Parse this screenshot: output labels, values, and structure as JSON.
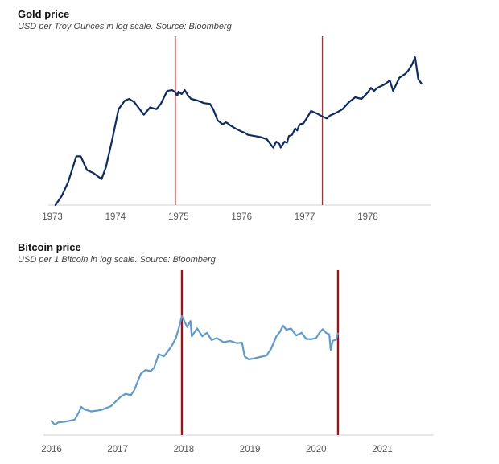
{
  "chart_data": [
    {
      "type": "line",
      "title": "Gold price",
      "subtitle": "USD per Troy Ounces in log scale. Source: Bloomberg",
      "xlabel": "",
      "ylabel": "",
      "y_scale": "log",
      "xlim": [
        1973.0,
        1978.85
      ],
      "ylim": [
        65,
        240
      ],
      "x_ticks": [
        "1973",
        "1974",
        "1975",
        "1976",
        "1977",
        "1978"
      ],
      "line_color": "#0b2a6b",
      "markers": [
        {
          "x": 1974.95,
          "color": "#d42020"
        },
        {
          "x": 1977.28,
          "color": "#d42020"
        }
      ],
      "series": [
        {
          "name": "Gold",
          "x": [
            1973.05,
            1973.15,
            1973.25,
            1973.38,
            1973.45,
            1973.55,
            1973.65,
            1973.78,
            1973.85,
            1973.95,
            1974.05,
            1974.15,
            1974.22,
            1974.3,
            1974.45,
            1974.55,
            1974.65,
            1974.72,
            1974.82,
            1974.9,
            1974.95,
            1974.98,
            1975.0,
            1975.05,
            1975.1,
            1975.15,
            1975.2,
            1975.3,
            1975.4,
            1975.5,
            1975.55,
            1975.62,
            1975.7,
            1975.75,
            1975.78,
            1975.82,
            1975.9,
            1976.0,
            1976.05,
            1976.1,
            1976.2,
            1976.3,
            1976.4,
            1976.5,
            1976.55,
            1976.6,
            1976.62,
            1976.68,
            1976.72,
            1976.75,
            1976.8,
            1976.85,
            1976.88,
            1976.92,
            1976.98,
            1977.05,
            1977.1,
            1977.2,
            1977.28,
            1977.35,
            1977.4,
            1977.5,
            1977.6,
            1977.7,
            1977.8,
            1977.9,
            1978.0,
            1978.05,
            1978.1,
            1978.15,
            1978.25,
            1978.35,
            1978.4,
            1978.5,
            1978.6,
            1978.65,
            1978.7,
            1978.75,
            1978.8,
            1978.85
          ],
          "y": [
            65,
            70,
            78,
            96,
            96,
            86,
            84,
            80,
            88,
            110,
            140,
            150,
            152,
            148,
            134,
            142,
            140,
            146,
            162,
            163,
            160,
            156,
            161,
            158,
            163,
            156,
            152,
            150,
            147,
            146,
            140,
            128,
            124,
            126,
            125,
            123,
            120,
            117,
            116,
            114,
            113,
            112,
            110,
            103,
            108,
            106,
            103,
            108,
            107,
            113,
            114,
            120,
            118,
            124,
            125,
            132,
            138,
            135,
            132,
            130,
            133,
            136,
            140,
            148,
            154,
            152,
            160,
            166,
            162,
            166,
            170,
            176,
            162,
            180,
            186,
            192,
            200,
            212,
            178,
            172
          ]
        }
      ]
    },
    {
      "type": "line",
      "title": "Bitcoin price",
      "subtitle": "USD per 1 Bitcoin in log scale. Source: Bloomberg",
      "xlabel": "",
      "ylabel": "",
      "y_scale": "log",
      "xlim": [
        2016.0,
        2021.95
      ],
      "ylim": [
        360,
        20000
      ],
      "x_ticks": [
        "2016",
        "2017",
        "2018",
        "2019",
        "2020",
        "2021"
      ],
      "line_color": "#5b9bd5",
      "markers": [
        {
          "x": 2017.97,
          "color": "#cc0000"
        },
        {
          "x": 2020.33,
          "color": "#cc0000"
        }
      ],
      "series": [
        {
          "name": "Bitcoin",
          "x": [
            2016.0,
            2016.05,
            2016.1,
            2016.2,
            2016.35,
            2016.42,
            2016.45,
            2016.5,
            2016.6,
            2016.75,
            2016.9,
            2017.0,
            2017.05,
            2017.12,
            2017.2,
            2017.25,
            2017.35,
            2017.42,
            2017.5,
            2017.55,
            2017.62,
            2017.7,
            2017.75,
            2017.82,
            2017.88,
            2017.93,
            2017.97,
            2018.0,
            2018.05,
            2018.1,
            2018.12,
            2018.2,
            2018.28,
            2018.35,
            2018.42,
            2018.5,
            2018.6,
            2018.7,
            2018.8,
            2018.88,
            2018.92,
            2018.98,
            2019.05,
            2019.15,
            2019.25,
            2019.32,
            2019.4,
            2019.45,
            2019.5,
            2019.55,
            2019.62,
            2019.7,
            2019.78,
            2019.85,
            2019.92,
            2020.0,
            2020.05,
            2020.1,
            2020.15,
            2020.2,
            2020.22,
            2020.25,
            2020.3,
            2020.33
          ],
          "y": [
            430,
            380,
            410,
            420,
            450,
            600,
            700,
            640,
            600,
            630,
            720,
            900,
            1000,
            1100,
            1050,
            1250,
            2200,
            2500,
            2400,
            2700,
            4300,
            4000,
            4600,
            5800,
            7500,
            11000,
            16000,
            14000,
            11000,
            13500,
            8000,
            10500,
            8000,
            9000,
            7000,
            7500,
            6500,
            6800,
            6300,
            6400,
            4000,
            3600,
            3700,
            3900,
            4100,
            5200,
            8000,
            9200,
            11500,
            10000,
            10400,
            8200,
            9000,
            7300,
            7200,
            7500,
            9000,
            10200,
            9000,
            8500,
            5000,
            6800,
            7100,
            8800
          ]
        }
      ]
    }
  ]
}
